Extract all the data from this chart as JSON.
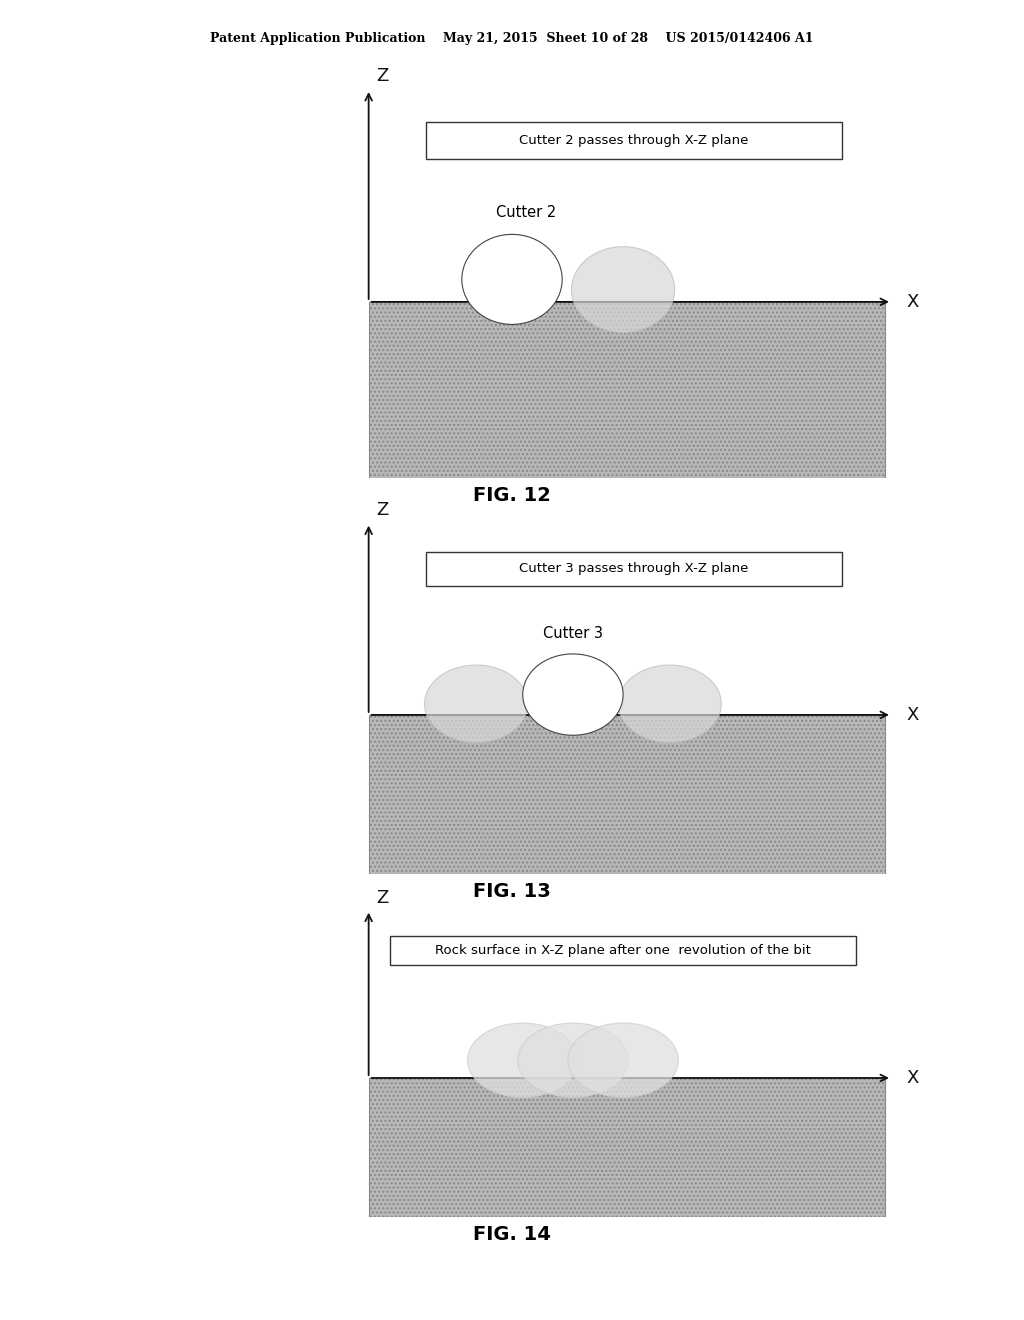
{
  "header_text": "Patent Application Publication    May 21, 2015  Sheet 10 of 28    US 2015/0142406 A1",
  "fig12": {
    "label": "FIG. 12",
    "box_text": "Cutter 2 passes through X-Z plane",
    "cutter_label": "Cutter 2"
  },
  "fig13": {
    "label": "FIG. 13",
    "box_text": "Cutter 3 passes through X-Z plane",
    "cutter_label": "Cutter 3"
  },
  "fig14": {
    "label": "FIG. 14",
    "box_text": "Rock surface in X-Z plane after one  revolution of the bit"
  },
  "bg_color": "#ffffff",
  "rock_fill": "#b8b8b8",
  "rock_edge": "#888888",
  "axis_color": "#111111",
  "circle_white_face": "#ffffff",
  "circle_white_edge": "#444444",
  "circle_gray_face": "#d8d8d8",
  "circle_gray_edge": "#bbbbbb",
  "box_edge": "#333333",
  "fig_label_size": 14,
  "header_size": 9
}
